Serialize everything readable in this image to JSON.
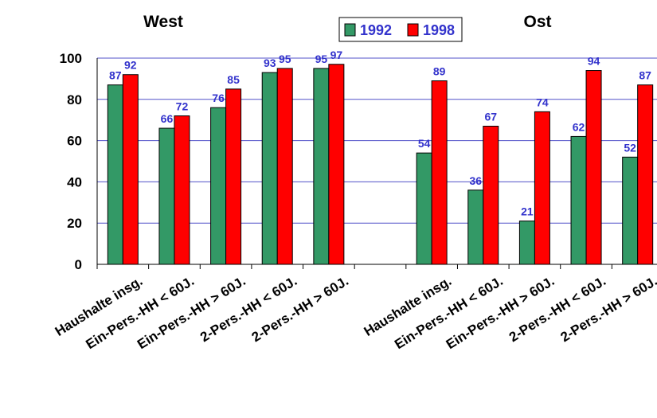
{
  "chart_data": {
    "type": "bar",
    "panel_titles": [
      "West",
      "Ost"
    ],
    "categories": [
      "Haushalte insg.",
      "Ein-Pers.-HH  < 60J.",
      "Ein-Pers.-HH > 60J.",
      "2-Pers.-HH < 60J.",
      "2-Pers.-HH > 60J.",
      "",
      "Haushalte insg.",
      "Ein-Pers.-HH  < 60J.",
      "Ein-Pers.-HH > 60J.",
      "2-Pers.-HH < 60J.",
      "2-Pers.-HH > 60J."
    ],
    "series": [
      {
        "name": "1992",
        "color": "#339966",
        "values": [
          87,
          66,
          76,
          93,
          95,
          null,
          54,
          36,
          21,
          62,
          52
        ]
      },
      {
        "name": "1998",
        "color": "#ff0000",
        "values": [
          92,
          72,
          85,
          95,
          97,
          null,
          89,
          67,
          74,
          94,
          87
        ]
      }
    ],
    "data_labels": [
      [
        "87",
        "66",
        "76",
        "93",
        "95",
        "",
        "54",
        "36",
        "21",
        "62",
        "52"
      ],
      [
        "92",
        "72",
        "85",
        "95",
        "97",
        "",
        "89",
        "67",
        "74",
        "94",
        "87"
      ]
    ],
    "ylim": [
      0,
      100
    ],
    "yticks": [
      "0",
      "20",
      "40",
      "60",
      "80",
      "100"
    ],
    "xlabel": "",
    "ylabel": "",
    "grid": true,
    "legend_position": "top-center"
  }
}
